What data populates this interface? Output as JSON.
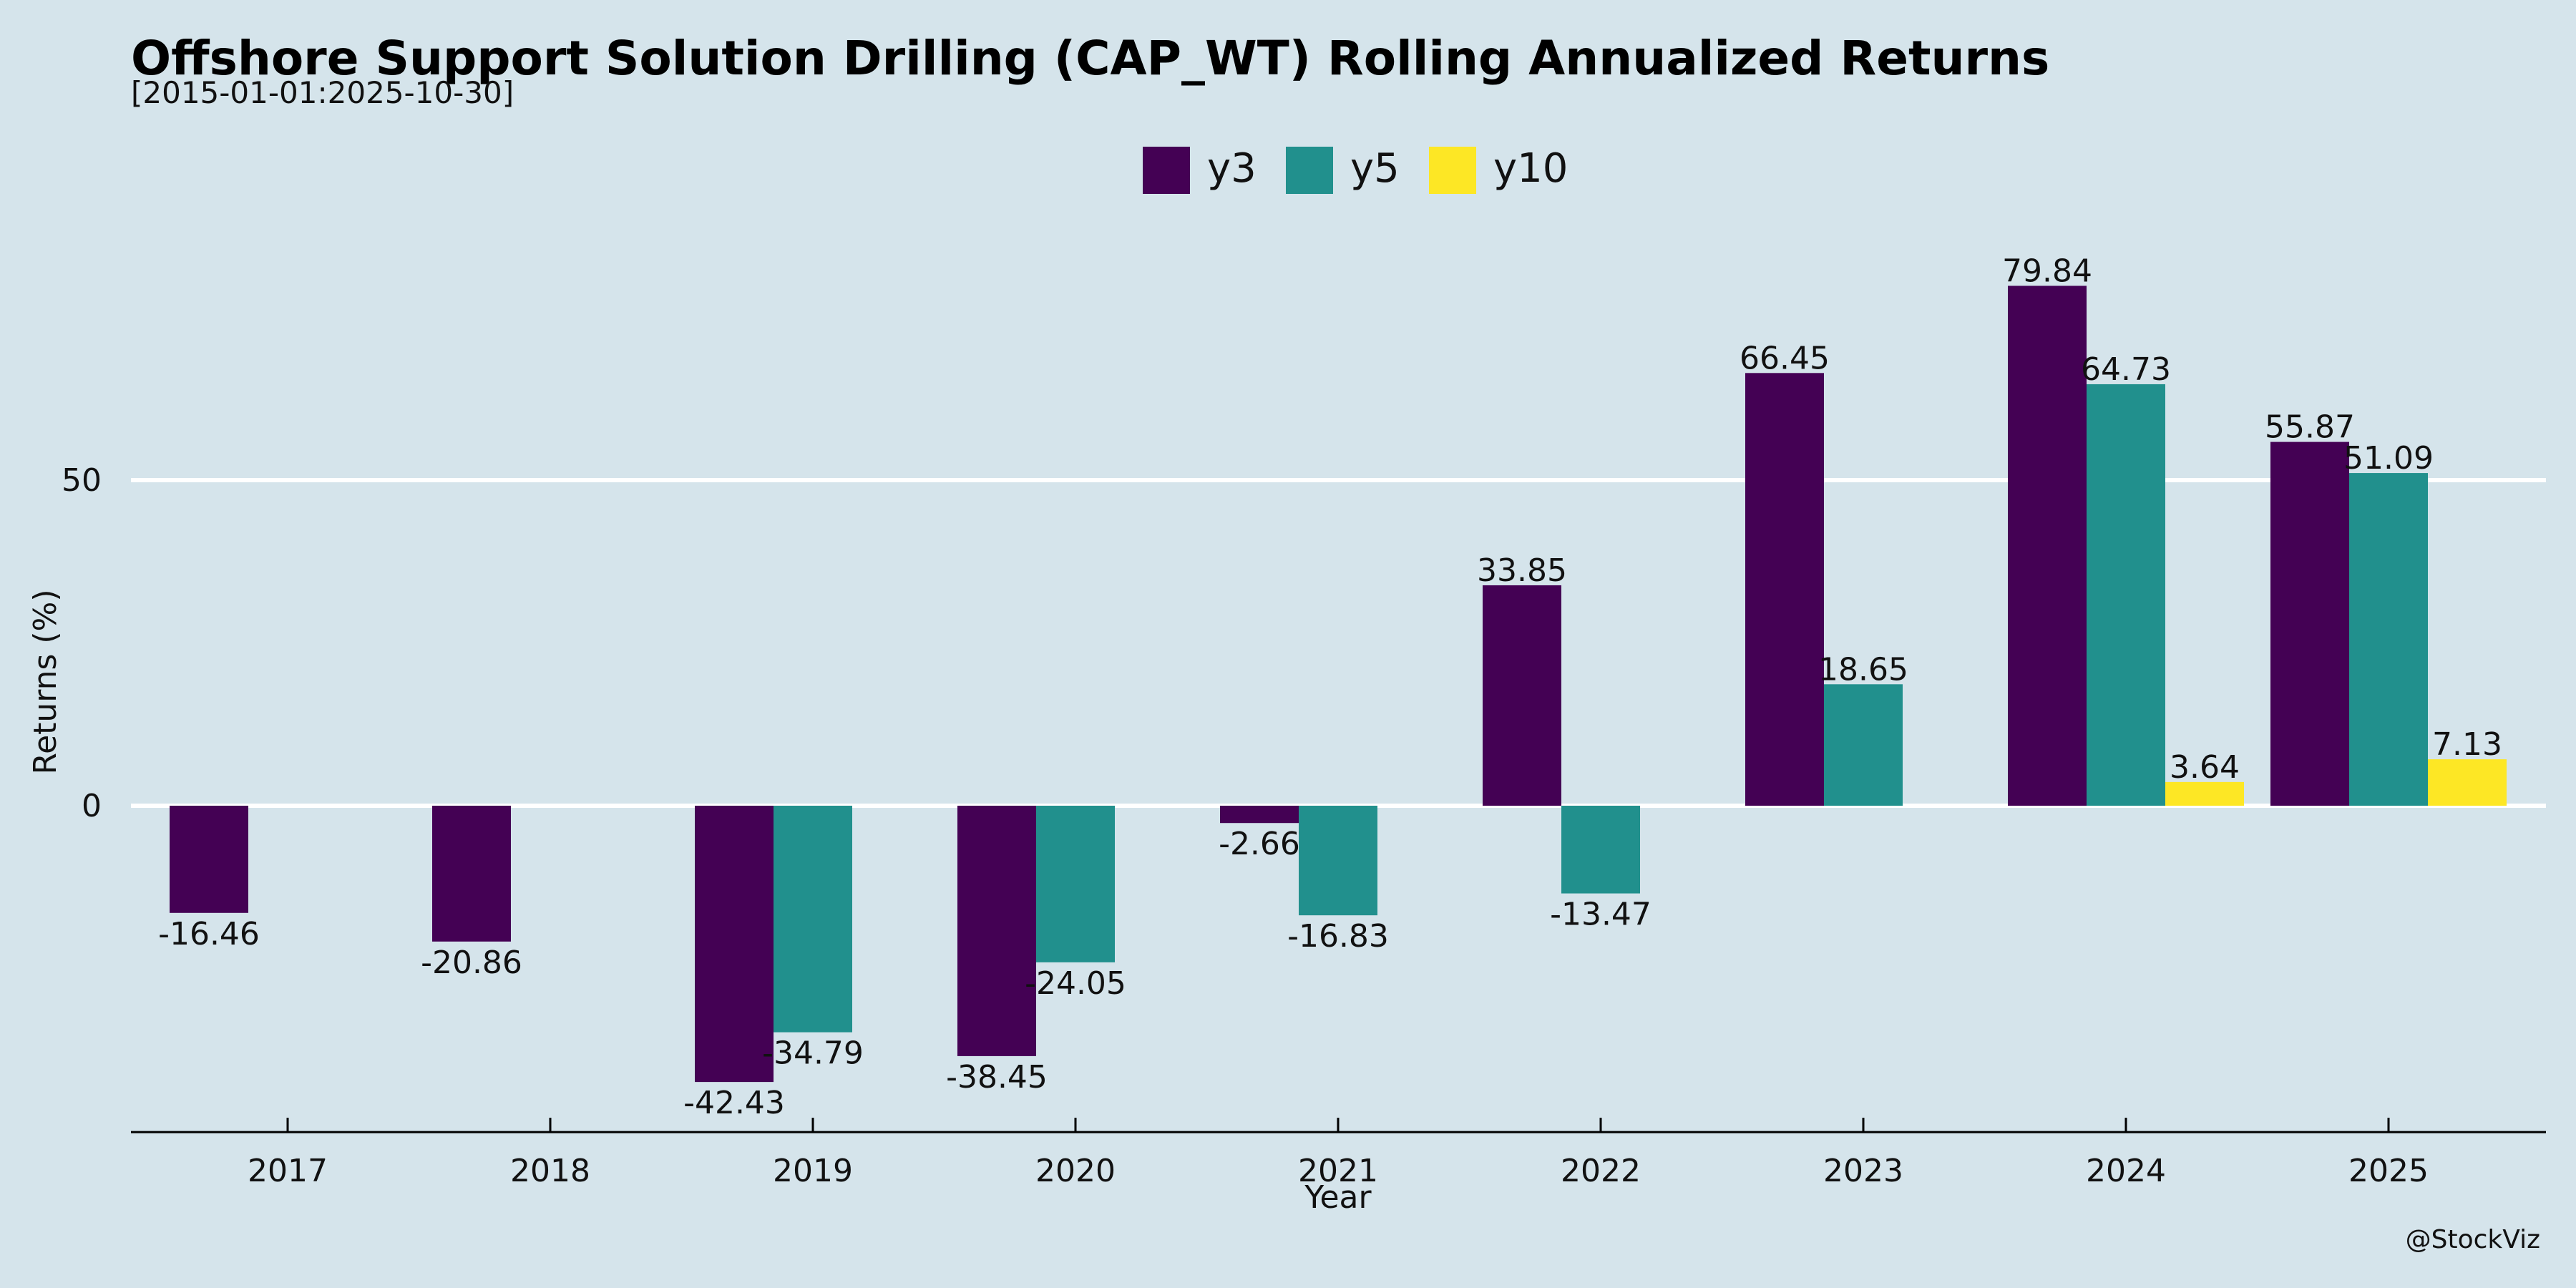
{
  "header": {
    "title": "Offshore Support Solution Drilling (CAP_WT) Rolling Annualized Returns",
    "subtitle": "[2015-01-01:2025-10-30]"
  },
  "watermark": "@StockViz",
  "chart_data": {
    "type": "bar",
    "title": "Offshore Support Solution Drilling (CAP_WT) Rolling Annualized Returns",
    "subtitle": "[2015-01-01:2025-10-30]",
    "xlabel": "Year",
    "ylabel": "Returns (%)",
    "categories": [
      "2017",
      "2018",
      "2019",
      "2020",
      "2021",
      "2022",
      "2023",
      "2024",
      "2025"
    ],
    "series": [
      {
        "name": "y3",
        "color": "#440154",
        "values": [
          -16.46,
          -20.86,
          -42.43,
          -38.45,
          -2.66,
          33.85,
          66.45,
          79.84,
          55.87
        ]
      },
      {
        "name": "y5",
        "color": "#21908d",
        "values": [
          null,
          null,
          -34.79,
          -24.05,
          -16.83,
          -13.47,
          18.65,
          64.73,
          51.09
        ]
      },
      {
        "name": "y10",
        "color": "#fde725",
        "values": [
          null,
          null,
          null,
          null,
          null,
          null,
          null,
          3.64,
          7.13
        ]
      }
    ],
    "yticks": [
      0,
      50
    ],
    "ylim": [
      -48.8,
      90
    ],
    "grid": "y",
    "legend": "top-center",
    "colors": {
      "background": "#d5e4eb",
      "grid": "#ffffff",
      "axis": "#000000"
    }
  }
}
